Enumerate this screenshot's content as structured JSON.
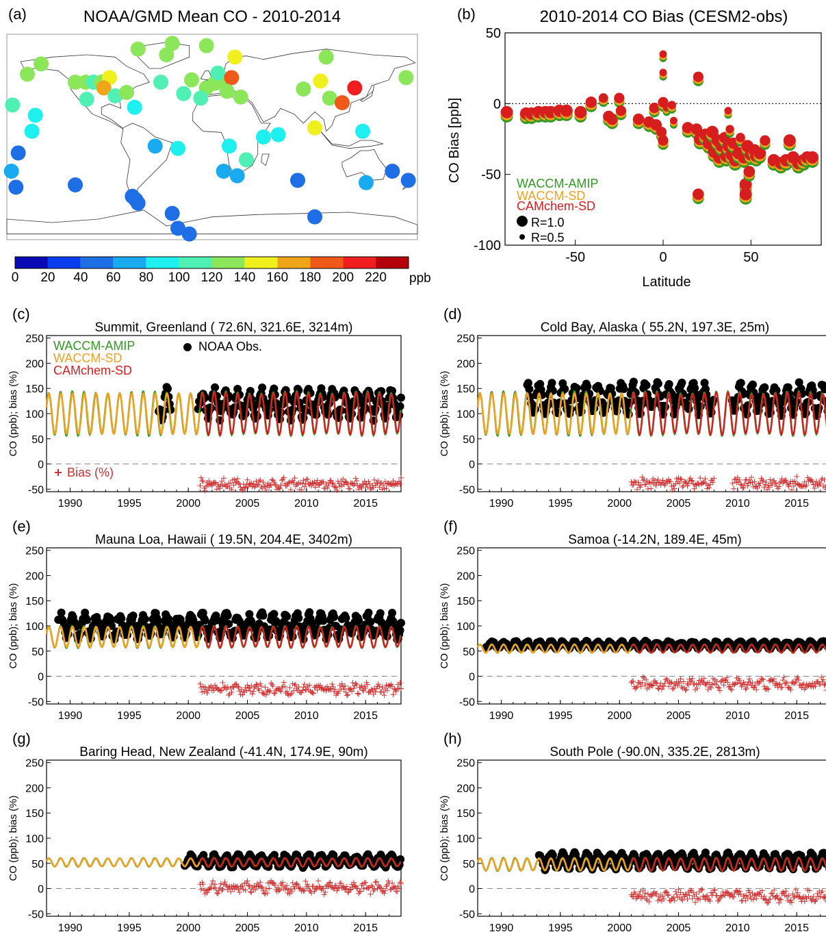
{
  "colors": {
    "waccm_amip": "#2f9a1f",
    "waccm_sd": "#f0a020",
    "camchem_sd": "#d61e1e",
    "obs": "#000000",
    "bias": "#d03030",
    "map_scale": [
      "#0a0ab4",
      "#0a3cf0",
      "#1e6ee6",
      "#19aaf0",
      "#1ef0f0",
      "#50f0b4",
      "#8ce65a",
      "#f0f01e",
      "#f0a519",
      "#f05a19",
      "#f01e1e",
      "#b4000a"
    ]
  },
  "panel_a": {
    "label": "(a)",
    "title": "NOAA/GMD Mean CO - 2010-2014",
    "colorbar_ticks": [
      "0",
      "20",
      "40",
      "60",
      "80",
      "100",
      "120",
      "140",
      "160",
      "180",
      "200",
      "220"
    ],
    "colorbar_unit": "ppb",
    "stations": [
      {
        "lon": -150,
        "lat": 64,
        "co": 130
      },
      {
        "lon": -162,
        "lat": 55,
        "co": 135
      },
      {
        "lon": -175,
        "lat": 28,
        "co": 110
      },
      {
        "lon": -155,
        "lat": 19,
        "co": 90
      },
      {
        "lon": -158,
        "lat": 5,
        "co": 80
      },
      {
        "lon": -170,
        "lat": -14,
        "co": 55
      },
      {
        "lon": -176,
        "lat": -30,
        "co": 70
      },
      {
        "lon": -172,
        "lat": -44,
        "co": 50
      },
      {
        "lon": -120,
        "lat": 48,
        "co": 130
      },
      {
        "lon": -111,
        "lat": 48,
        "co": 120
      },
      {
        "lon": -104,
        "lat": 48,
        "co": 115
      },
      {
        "lon": -97,
        "lat": 48,
        "co": 120
      },
      {
        "lon": -90,
        "lat": 52,
        "co": 140
      },
      {
        "lon": -95,
        "lat": 43,
        "co": 165
      },
      {
        "lon": -110,
        "lat": 33,
        "co": 115
      },
      {
        "lon": -85,
        "lat": 36,
        "co": 110
      },
      {
        "lon": -75,
        "lat": 39,
        "co": 120
      },
      {
        "lon": -68,
        "lat": 26,
        "co": 90
      },
      {
        "lon": -40,
        "lat": 72,
        "co": 125
      },
      {
        "lon": -35,
        "lat": 82,
        "co": 135
      },
      {
        "lon": -120,
        "lat": -42,
        "co": 55
      },
      {
        "lon": -5,
        "lat": 80,
        "co": 130
      },
      {
        "lon": 20,
        "lat": 70,
        "co": 140
      },
      {
        "lon": -18,
        "lat": 50,
        "co": 125
      },
      {
        "lon": -45,
        "lat": 48,
        "co": 115
      },
      {
        "lon": -25,
        "lat": 38,
        "co": 110
      },
      {
        "lon": -5,
        "lat": 43,
        "co": 125
      },
      {
        "lon": 2,
        "lat": 47,
        "co": 130
      },
      {
        "lon": 9,
        "lat": 48,
        "co": 130
      },
      {
        "lon": -10,
        "lat": 34,
        "co": 100
      },
      {
        "lon": 5,
        "lat": 56,
        "co": 115
      },
      {
        "lon": 17,
        "lat": 52,
        "co": 190
      },
      {
        "lon": 13,
        "lat": 40,
        "co": 135
      },
      {
        "lon": 25,
        "lat": 35,
        "co": 135
      },
      {
        "lon": -50,
        "lat": -8,
        "co": 75
      },
      {
        "lon": -30,
        "lat": -10,
        "co": 80
      },
      {
        "lon": 15,
        "lat": -8,
        "co": 90
      },
      {
        "lon": 30,
        "lat": -20,
        "co": 110
      },
      {
        "lon": 45,
        "lat": 0,
        "co": 85
      },
      {
        "lon": 58,
        "lat": 2,
        "co": 90
      },
      {
        "lon": 80,
        "lat": 42,
        "co": 120
      },
      {
        "lon": 95,
        "lat": 49,
        "co": 145
      },
      {
        "lon": 125,
        "lat": 43,
        "co": 210
      },
      {
        "lon": 103,
        "lat": 34,
        "co": 135
      },
      {
        "lon": 114,
        "lat": 30,
        "co": 195
      },
      {
        "lon": 132,
        "lat": 5,
        "co": 85
      },
      {
        "lon": 90,
        "lat": 8,
        "co": 140
      },
      {
        "lon": 10,
        "lat": -30,
        "co": 70
      },
      {
        "lon": 22,
        "lat": -34,
        "co": 60
      },
      {
        "lon": 75,
        "lat": -38,
        "co": 50
      },
      {
        "lon": 135,
        "lat": -40,
        "co": 60
      },
      {
        "lon": 158,
        "lat": -30,
        "co": 55
      },
      {
        "lon": 172,
        "lat": -38,
        "co": 55
      },
      {
        "lon": -70,
        "lat": -52,
        "co": 55
      },
      {
        "lon": -67,
        "lat": -55,
        "co": 50
      },
      {
        "lon": -65,
        "lat": -58,
        "co": 50
      },
      {
        "lon": -35,
        "lat": -67,
        "co": 50
      },
      {
        "lon": -30,
        "lat": -80,
        "co": 50
      },
      {
        "lon": -20,
        "lat": -85,
        "co": 50
      },
      {
        "lon": 90,
        "lat": -70,
        "co": 50
      },
      {
        "lon": 100,
        "lat": 70,
        "co": 135
      },
      {
        "lon": 170,
        "lat": 52,
        "co": 130
      },
      {
        "lon": -65,
        "lat": 77,
        "co": 125
      }
    ]
  },
  "panel_b": {
    "label": "(b)",
    "title": "2010-2014 CO Bias (CESM2-obs)",
    "xlabel": "Latitude",
    "ylabel": "CO Bias [ppb]",
    "x_ticks": [
      "-50",
      "0",
      "50"
    ],
    "y_ticks": [
      "50",
      "0",
      "-50",
      "-100"
    ],
    "legend": {
      "amip": "WACCM-AMIP",
      "sd": "WACCM-SD",
      "cam": "CAMchem-SD",
      "r1": "R=1.0",
      "r05": "R=0.5"
    }
  },
  "chart_data": {
    "type": "scatter",
    "title": "2010-2014 CO Bias (CESM2-obs)",
    "xlabel": "Latitude",
    "ylabel": "CO Bias [ppb]",
    "xlim": [
      -90,
      90
    ],
    "ylim": [
      -100,
      50
    ],
    "series": [
      {
        "name": "WACCM-AMIP"
      },
      {
        "name": "WACCM-SD"
      },
      {
        "name": "CAMchem-SD"
      }
    ],
    "points": [
      {
        "lat": -89,
        "bias": -6,
        "r": 1.0
      },
      {
        "lat": -78,
        "bias": -7,
        "r": 1.0
      },
      {
        "lat": -75,
        "bias": -7,
        "r": 1.0
      },
      {
        "lat": -71,
        "bias": -6,
        "r": 1.0
      },
      {
        "lat": -67,
        "bias": -6,
        "r": 1.0
      },
      {
        "lat": -64,
        "bias": -6,
        "r": 1.0
      },
      {
        "lat": -59,
        "bias": -5,
        "r": 1.0
      },
      {
        "lat": -55,
        "bias": -5,
        "r": 1.0
      },
      {
        "lat": -47,
        "bias": -6,
        "r": 1.0
      },
      {
        "lat": -41,
        "bias": 1,
        "r": 0.9
      },
      {
        "lat": -34,
        "bias": 4,
        "r": 0.7
      },
      {
        "lat": -31,
        "bias": -9,
        "r": 0.9
      },
      {
        "lat": -29,
        "bias": -11,
        "r": 0.9
      },
      {
        "lat": -25,
        "bias": 4,
        "r": 0.8
      },
      {
        "lat": -24,
        "bias": -5,
        "r": 0.8
      },
      {
        "lat": -14,
        "bias": -11,
        "r": 0.9
      },
      {
        "lat": -8,
        "bias": -13,
        "r": 0.9
      },
      {
        "lat": -5,
        "bias": -3,
        "r": 0.8
      },
      {
        "lat": -4,
        "bias": -15,
        "r": 0.9
      },
      {
        "lat": -1,
        "bias": -20,
        "r": 0.8
      },
      {
        "lat": 0,
        "bias": -26,
        "r": 0.8
      },
      {
        "lat": 0,
        "bias": 1,
        "r": 0.8
      },
      {
        "lat": 0,
        "bias": 35,
        "r": 0.5
      },
      {
        "lat": 0,
        "bias": 22,
        "r": 0.5
      },
      {
        "lat": 2,
        "bias": -3,
        "r": 0.5
      },
      {
        "lat": 5,
        "bias": -1,
        "r": 0.6
      },
      {
        "lat": 6,
        "bias": -12,
        "r": 0.5
      },
      {
        "lat": 20,
        "bias": 19,
        "r": 0.8
      },
      {
        "lat": 20,
        "bias": -64,
        "r": 0.9
      },
      {
        "lat": 14,
        "bias": -17,
        "r": 0.9
      },
      {
        "lat": 19,
        "bias": -18,
        "r": 0.9
      },
      {
        "lat": 21,
        "bias": -25,
        "r": 1.0
      },
      {
        "lat": 24,
        "bias": -22,
        "r": 1.0
      },
      {
        "lat": 26,
        "bias": -28,
        "r": 1.0
      },
      {
        "lat": 28,
        "bias": -20,
        "r": 1.0
      },
      {
        "lat": 29,
        "bias": -34,
        "r": 1.0
      },
      {
        "lat": 31,
        "bias": -26,
        "r": 1.0
      },
      {
        "lat": 32,
        "bias": -38,
        "r": 1.0
      },
      {
        "lat": 33,
        "bias": -30,
        "r": 0.9
      },
      {
        "lat": 35,
        "bias": -24,
        "r": 0.9
      },
      {
        "lat": 36,
        "bias": -37,
        "r": 1.0
      },
      {
        "lat": 37,
        "bias": -5,
        "r": 0.5
      },
      {
        "lat": 37,
        "bias": -30,
        "r": 0.9
      },
      {
        "lat": 38,
        "bias": -18,
        "r": 0.6
      },
      {
        "lat": 39,
        "bias": -36,
        "r": 1.0
      },
      {
        "lat": 40,
        "bias": -28,
        "r": 0.9
      },
      {
        "lat": 41,
        "bias": -40,
        "r": 1.0
      },
      {
        "lat": 43,
        "bias": -35,
        "r": 1.0
      },
      {
        "lat": 44,
        "bias": -24,
        "r": 0.7
      },
      {
        "lat": 46,
        "bias": -38,
        "r": 1.0
      },
      {
        "lat": 47,
        "bias": -57,
        "r": 1.0
      },
      {
        "lat": 47,
        "bias": -64,
        "r": 1.0
      },
      {
        "lat": 48,
        "bias": -30,
        "r": 1.0
      },
      {
        "lat": 49,
        "bias": -48,
        "r": 0.9
      },
      {
        "lat": 50,
        "bias": -36,
        "r": 1.0
      },
      {
        "lat": 52,
        "bias": -33,
        "r": 1.0
      },
      {
        "lat": 53,
        "bias": -37,
        "r": 1.0
      },
      {
        "lat": 55,
        "bias": -35,
        "r": 1.0
      },
      {
        "lat": 58,
        "bias": -26,
        "r": 0.8
      },
      {
        "lat": 63,
        "bias": -40,
        "r": 1.0
      },
      {
        "lat": 67,
        "bias": -42,
        "r": 1.0
      },
      {
        "lat": 70,
        "bias": -40,
        "r": 1.0
      },
      {
        "lat": 72,
        "bias": -26,
        "r": 1.0
      },
      {
        "lat": 74,
        "bias": -38,
        "r": 1.0
      },
      {
        "lat": 77,
        "bias": -42,
        "r": 1.0
      },
      {
        "lat": 80,
        "bias": -40,
        "r": 1.0
      },
      {
        "lat": 82,
        "bias": -38,
        "r": 1.0
      },
      {
        "lat": 85,
        "bias": -38,
        "r": 1.0
      }
    ]
  },
  "timeseries": {
    "x_ticks": [
      "1990",
      "1995",
      "2000",
      "2005",
      "2010",
      "2015"
    ],
    "y_ticks": [
      "250",
      "200",
      "150",
      "100",
      "50",
      "0",
      "-50"
    ],
    "ylabel": "CO (ppb); bias (%)",
    "legend": {
      "amip": "WACCM-AMIP",
      "sd": "WACCM-SD",
      "cam": "CAMchem-SD",
      "obs": "NOAA Obs.",
      "bias": "Bias (%)"
    },
    "panels": [
      {
        "id": "c",
        "label": "(c)",
        "title": "Summit, Greenland  ( 72.6N,  321.6E, 3214m)",
        "mean": 100,
        "amp": 40,
        "obs_mean": 120,
        "obs_amp": 25,
        "obs_start": 1997.5,
        "obs_gap": [
          1998.5,
          2000.8
        ],
        "bias_mean": -40,
        "bias_start": 2001,
        "cam_start": 2001,
        "show_legend": true
      },
      {
        "id": "d",
        "label": "(d)",
        "title": "Cold Bay, Alaska  ( 55.2N,  197.3E, 25m)",
        "mean": 100,
        "amp": 40,
        "obs_mean": 130,
        "obs_amp": 25,
        "obs_start": 1992.2,
        "obs_gap": [
          2008,
          2009.5
        ],
        "bias_mean": -38,
        "bias_start": 2001,
        "cam_start": 2001,
        "show_legend": false
      },
      {
        "id": "e",
        "label": "(e)",
        "title": "Mauna Loa, Hawaii  ( 19.5N,  204.4E, 3402m)",
        "mean": 78,
        "amp": 20,
        "obs_mean": 100,
        "obs_amp": 20,
        "obs_start": 1989,
        "obs_gap": null,
        "bias_mean": -25,
        "bias_start": 2001,
        "cam_start": 2001,
        "show_legend": false
      },
      {
        "id": "f",
        "label": "(f)",
        "title": "Samoa  (-14.2N,  189.4E, 45m)",
        "mean": 55,
        "amp": 8,
        "obs_mean": 62,
        "obs_amp": 6,
        "obs_start": 1988.7,
        "obs_gap": null,
        "bias_mean": -15,
        "bias_start": 2001,
        "cam_start": 2001,
        "show_legend": false
      },
      {
        "id": "g",
        "label": "(g)",
        "title": "Baring Head, New Zealand  (-41.4N,  174.9E, 90m)",
        "mean": 52,
        "amp": 8,
        "obs_mean": 55,
        "obs_amp": 10,
        "obs_start": 1999.7,
        "obs_gap": null,
        "bias_mean": 2,
        "bias_start": 2001,
        "cam_start": 2000,
        "show_legend": false
      },
      {
        "id": "h",
        "label": "(h)",
        "title": "South Pole  (-90.0N,  335.2E, 2813m)",
        "mean": 48,
        "amp": 12,
        "obs_mean": 55,
        "obs_amp": 13,
        "obs_start": 1993.2,
        "obs_gap": null,
        "bias_mean": -15,
        "bias_start": 2001,
        "cam_start": 2001,
        "show_legend": false
      }
    ]
  }
}
